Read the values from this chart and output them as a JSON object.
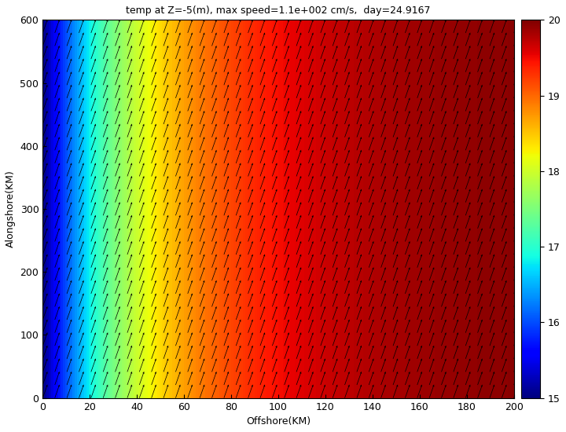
{
  "title": "temp at Z=-5(m), max speed=1.1e+002 cm/s,  day=24.9167",
  "xlabel": "Offshore(KM)",
  "ylabel": "Alongshore(KM)",
  "x_min": 0,
  "x_max": 200,
  "y_min": 0,
  "y_max": 600,
  "temp_min": 15,
  "temp_max": 20,
  "cbar_ticks": [
    15,
    16,
    17,
    18,
    19,
    20
  ],
  "colormap": "jet",
  "nx": 200,
  "ny": 200,
  "quiver_nx": 40,
  "quiver_ny": 30,
  "background_color": "#ffffff",
  "title_fontsize": 9,
  "label_fontsize": 9,
  "temp_gradient_scale": 0.055,
  "u_component": 0.35,
  "v_component": 1.0,
  "figwidth": 7.2,
  "figheight": 5.5
}
